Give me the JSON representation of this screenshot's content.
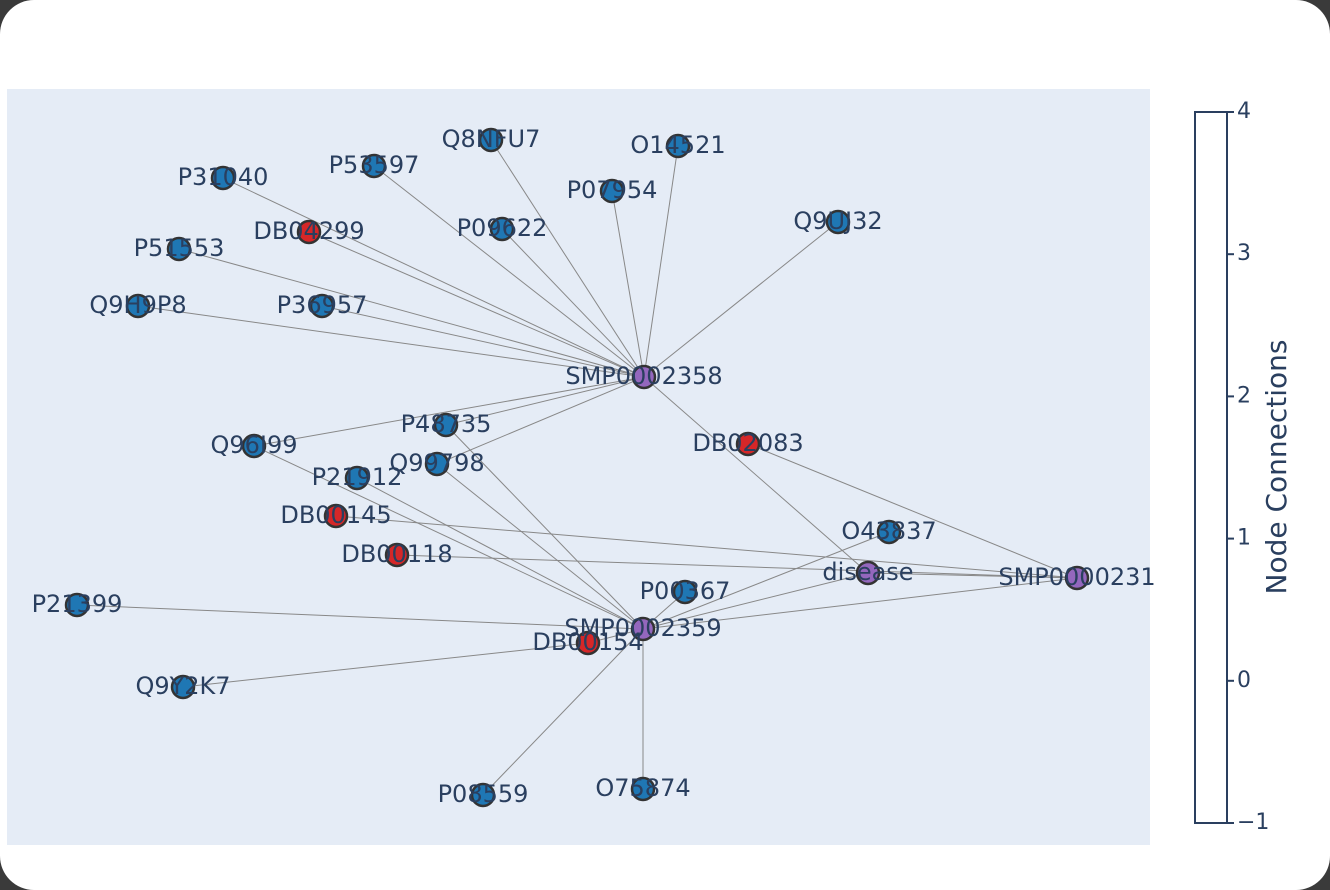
{
  "nodes": [
    {
      "label": "P31040",
      "color": "#1f77b4"
    },
    {
      "label": "P53597",
      "color": "#1f77b4"
    },
    {
      "label": "Q8NFU7",
      "color": "#1f77b4"
    },
    {
      "label": "O14521",
      "color": "#1f77b4"
    },
    {
      "label": "P07954",
      "color": "#1f77b4"
    },
    {
      "label": "Q9UJ32",
      "color": "#1f77b4"
    },
    {
      "label": "DB04299",
      "color": "#d62728"
    },
    {
      "label": "P09622",
      "color": "#1f77b4"
    },
    {
      "label": "P51553",
      "color": "#1f77b4"
    },
    {
      "label": "Q9H9P8",
      "color": "#1f77b4"
    },
    {
      "label": "P36957",
      "color": "#1f77b4"
    },
    {
      "label": "SMP0002358",
      "color": "#9467bd"
    },
    {
      "label": "P48735",
      "color": "#1f77b4"
    },
    {
      "label": "Q96I99",
      "color": "#1f77b4"
    },
    {
      "label": "DB02083",
      "color": "#d62728"
    },
    {
      "label": "Q99798",
      "color": "#1f77b4"
    },
    {
      "label": "P21912",
      "color": "#1f77b4"
    },
    {
      "label": "DB00145",
      "color": "#d62728"
    },
    {
      "label": "O43837",
      "color": "#1f77b4"
    },
    {
      "label": "DB00118",
      "color": "#d62728"
    },
    {
      "label": "disease",
      "color": "#9467bd"
    },
    {
      "label": "SMP0000231",
      "color": "#9467bd"
    },
    {
      "label": "P00367",
      "color": "#1f77b4"
    },
    {
      "label": "P21399",
      "color": "#1f77b4"
    },
    {
      "label": "SMP0002359",
      "color": "#9467bd"
    },
    {
      "label": "DB00154",
      "color": "#d62728"
    },
    {
      "label": "Q9Y2K7",
      "color": "#1f77b4"
    },
    {
      "label": "P08559",
      "color": "#1f77b4"
    },
    {
      "label": "O75874",
      "color": "#1f77b4"
    }
  ],
  "edges": [
    [
      11,
      0
    ],
    [
      11,
      1
    ],
    [
      11,
      2
    ],
    [
      11,
      3
    ],
    [
      11,
      4
    ],
    [
      11,
      5
    ],
    [
      11,
      6
    ],
    [
      11,
      7
    ],
    [
      11,
      8
    ],
    [
      11,
      9
    ],
    [
      11,
      10
    ],
    [
      11,
      12
    ],
    [
      11,
      13
    ],
    [
      11,
      15
    ],
    [
      11,
      20
    ],
    [
      14,
      21
    ],
    [
      12,
      24
    ],
    [
      13,
      24
    ],
    [
      16,
      24
    ],
    [
      15,
      24
    ],
    [
      17,
      21
    ],
    [
      19,
      21
    ],
    [
      23,
      24
    ],
    [
      26,
      25
    ],
    [
      25,
      24
    ],
    [
      24,
      27
    ],
    [
      24,
      28
    ],
    [
      24,
      22
    ],
    [
      24,
      18
    ],
    [
      24,
      20
    ],
    [
      24,
      21
    ],
    [
      20,
      21
    ]
  ],
  "colorbar": {
    "title": "Node Connections",
    "range": [
      -1,
      4
    ],
    "ticks": [
      4,
      3,
      2,
      1,
      0,
      {
        "value": -1,
        "label": "−1"
      }
    ]
  }
}
